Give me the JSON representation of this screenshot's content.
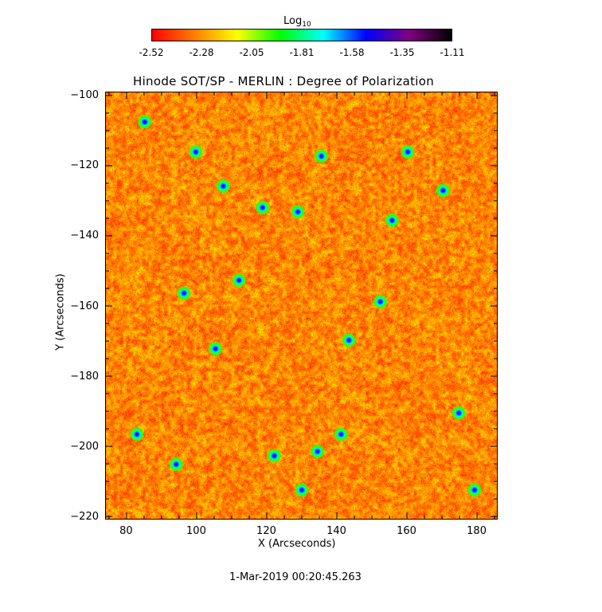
{
  "chart_data": {
    "type": "heatmap",
    "title": "Hinode SOT/SP - MERLIN : Degree of Polarization",
    "xlabel": "X (Arcseconds)",
    "ylabel": "Y (Arcseconds)",
    "xlim": [
      74,
      186
    ],
    "ylim": [
      -221,
      -99
    ],
    "x_ticks": [
      80,
      100,
      120,
      140,
      160,
      180
    ],
    "y_ticks": [
      -100,
      -120,
      -140,
      -160,
      -180,
      -200,
      -220
    ],
    "colorbar": {
      "title_main": "Log",
      "title_sub": "10",
      "ticks": [
        "-2.52",
        "-2.28",
        "-2.05",
        "-1.81",
        "-1.58",
        "-1.35",
        "-1.11"
      ],
      "range": [
        -2.52,
        -1.11
      ],
      "colormap": [
        "#ff0000",
        "#ff8000",
        "#ffff00",
        "#00ff00",
        "#00ffff",
        "#0000ff",
        "#800080",
        "#000000"
      ]
    },
    "timestamp": "1-Mar-2019 00:20:45.263"
  }
}
